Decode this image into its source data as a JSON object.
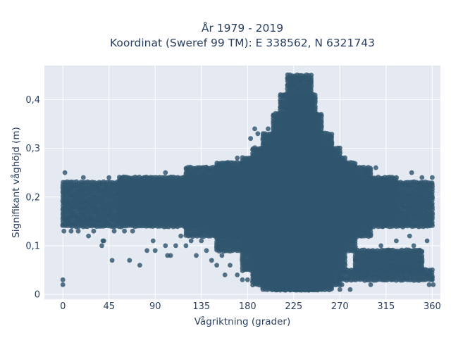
{
  "title_line1": "År 1979 - 2019",
  "title_line2": "Koordinat (Sweref 99 TM): E 338562, N 6321743",
  "chart_data": {
    "type": "scatter",
    "xlabel": "Vågriktning (grader)",
    "ylabel": "Signifikant våghöjd (m)",
    "xlim": [
      -18,
      368
    ],
    "ylim": [
      -0.01,
      0.47
    ],
    "xticks": [
      0,
      45,
      90,
      135,
      180,
      225,
      270,
      315,
      360
    ],
    "xtick_labels": [
      "0",
      "45",
      "90",
      "135",
      "180",
      "225",
      "270",
      "315",
      "360"
    ],
    "yticks": [
      0,
      0.1,
      0.2,
      0.3,
      0.4
    ],
    "ytick_labels": [
      "0",
      "0,1",
      "0,2",
      "0,3",
      "0,4"
    ],
    "grid": true,
    "marker_color": "#2f566e",
    "background_color": "#e5e9f1",
    "bands": [
      {
        "x_range": [
          0,
          360
        ],
        "y_range": [
          0.14,
          0.23
        ]
      },
      {
        "x_range": [
          55,
          325
        ],
        "y_range": [
          0.15,
          0.24
        ]
      },
      {
        "x_range": [
          120,
          300
        ],
        "y_range": [
          0.12,
          0.26
        ]
      },
      {
        "x_range": [
          150,
          285
        ],
        "y_range": [
          0.09,
          0.27
        ]
      },
      {
        "x_range": [
          175,
          275
        ],
        "y_range": [
          0.05,
          0.28
        ]
      },
      {
        "x_range": [
          185,
          270
        ],
        "y_range": [
          0.02,
          0.3
        ]
      },
      {
        "x_range": [
          195,
          262
        ],
        "y_range": [
          0.01,
          0.33
        ]
      },
      {
        "x_range": [
          205,
          252
        ],
        "y_range": [
          0.01,
          0.37
        ]
      },
      {
        "x_range": [
          212,
          246
        ],
        "y_range": [
          0.01,
          0.41
        ]
      },
      {
        "x_range": [
          219,
          242
        ],
        "y_range": [
          0.01,
          0.45
        ]
      },
      {
        "x_range": [
          270,
          360
        ],
        "y_range": [
          0.03,
          0.05
        ]
      },
      {
        "x_range": [
          285,
          350
        ],
        "y_range": [
          0.05,
          0.09
        ]
      }
    ],
    "points": [
      [
        0,
        0.02
      ],
      [
        0,
        0.03
      ],
      [
        1,
        0.13
      ],
      [
        2,
        0.25
      ],
      [
        8,
        0.13
      ],
      [
        25,
        0.12
      ],
      [
        38,
        0.1
      ],
      [
        39,
        0.11
      ],
      [
        40,
        0.11
      ],
      [
        48,
        0.07
      ],
      [
        58,
        0.24
      ],
      [
        65,
        0.07
      ],
      [
        68,
        0.13
      ],
      [
        75,
        0.06
      ],
      [
        82,
        0.09
      ],
      [
        88,
        0.11
      ],
      [
        90,
        0.09
      ],
      [
        100,
        0.1
      ],
      [
        102,
        0.08
      ],
      [
        105,
        0.08
      ],
      [
        110,
        0.1
      ],
      [
        115,
        0.12
      ],
      [
        120,
        0.1
      ],
      [
        125,
        0.11
      ],
      [
        130,
        0.08
      ],
      [
        135,
        0.11
      ],
      [
        140,
        0.09
      ],
      [
        145,
        0.07
      ],
      [
        148,
        0.12
      ],
      [
        150,
        0.06
      ],
      [
        155,
        0.08
      ],
      [
        158,
        0.04
      ],
      [
        163,
        0.06
      ],
      [
        170,
        0.04
      ],
      [
        175,
        0.03
      ],
      [
        180,
        0.03
      ],
      [
        183,
        0.32
      ],
      [
        187,
        0.34
      ],
      [
        190,
        0.33
      ],
      [
        265,
        0.28
      ],
      [
        268,
        0.28
      ],
      [
        270,
        0.01
      ],
      [
        272,
        0.02
      ],
      [
        276,
        0.25
      ],
      [
        280,
        0.01
      ],
      [
        285,
        0.07
      ],
      [
        290,
        0.12
      ],
      [
        295,
        0.25
      ],
      [
        300,
        0.02
      ],
      [
        305,
        0.26
      ],
      [
        310,
        0.1
      ],
      [
        312,
        0.14
      ],
      [
        318,
        0.09
      ],
      [
        320,
        0.03
      ],
      [
        325,
        0.11
      ],
      [
        330,
        0.08
      ],
      [
        335,
        0.06
      ],
      [
        338,
        0.12
      ],
      [
        342,
        0.1
      ],
      [
        348,
        0.09
      ],
      [
        352,
        0.05
      ],
      [
        355,
        0.11
      ],
      [
        357,
        0.02
      ],
      [
        360,
        0.03
      ],
      [
        361,
        0.02
      ],
      [
        360,
        0.24
      ],
      [
        350,
        0.24
      ],
      [
        340,
        0.25
      ],
      [
        230,
        0.44
      ],
      [
        228,
        0.44
      ],
      [
        233,
        0.44
      ],
      [
        225,
        0.43
      ],
      [
        236,
        0.42
      ],
      [
        216,
        0.41
      ],
      [
        248,
        0.37
      ],
      [
        210,
        0.37
      ],
      [
        200,
        0.34
      ],
      [
        258,
        0.32
      ],
      [
        262,
        0.31
      ],
      [
        170,
        0.28
      ],
      [
        160,
        0.27
      ],
      [
        140,
        0.26
      ],
      [
        100,
        0.25
      ],
      [
        80,
        0.24
      ],
      [
        45,
        0.24
      ],
      [
        20,
        0.24
      ],
      [
        15,
        0.13
      ],
      [
        30,
        0.13
      ],
      [
        50,
        0.13
      ],
      [
        60,
        0.13
      ]
    ]
  }
}
